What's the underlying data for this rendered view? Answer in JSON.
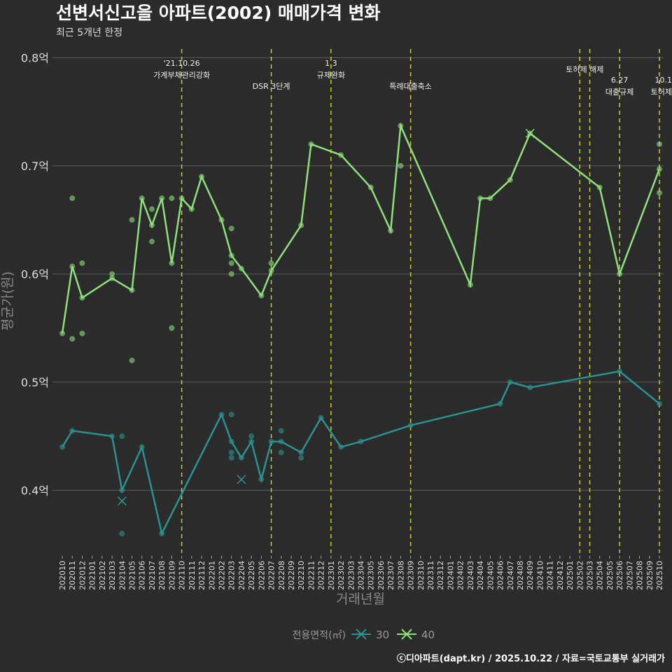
{
  "chart_data": {
    "type": "line",
    "title": "선변서신고을 아파트(2002) 매매가격 변화",
    "subtitle": "최근 5개년 한정",
    "caption": "ⓒ디아파트(dapt.kr) / 2025.10.22 / 자료=국토교통부 실거래가",
    "xlabel": "거래년월",
    "ylabel": "평균가(원)",
    "ylim": [
      0.342,
      0.808
    ],
    "yticks": [
      {
        "v": 0.4,
        "label": "0.4억"
      },
      {
        "v": 0.5,
        "label": "0.5억"
      },
      {
        "v": 0.6,
        "label": "0.6억"
      },
      {
        "v": 0.7,
        "label": "0.7억"
      },
      {
        "v": 0.8,
        "label": "0.8억"
      }
    ],
    "x_start": "202010",
    "x_months": 61,
    "legend": {
      "title": "전용면적(㎡)",
      "position": "bottom"
    },
    "series": [
      {
        "name": "30",
        "color": "#2a9391",
        "line": [
          [
            0,
            0.44
          ],
          [
            1,
            0.455
          ],
          [
            5,
            0.45
          ],
          [
            6,
            0.4
          ],
          [
            8,
            0.44
          ],
          [
            10,
            0.36
          ],
          [
            16,
            0.47
          ],
          [
            17,
            0.445
          ],
          [
            18,
            0.43
          ],
          [
            19,
            0.445
          ],
          [
            20,
            0.41
          ],
          [
            21,
            0.445
          ],
          [
            22,
            0.445
          ],
          [
            24,
            0.435
          ],
          [
            26,
            0.467
          ],
          [
            28,
            0.44
          ],
          [
            30,
            0.445
          ],
          [
            35,
            0.46
          ],
          [
            44,
            0.48
          ],
          [
            45,
            0.5
          ],
          [
            47,
            0.495
          ],
          [
            56,
            0.51
          ],
          [
            60,
            0.48
          ]
        ],
        "points": [
          [
            6,
            0.45
          ],
          [
            6,
            0.36
          ],
          [
            17,
            0.47
          ],
          [
            17,
            0.435
          ],
          [
            17,
            0.43
          ],
          [
            19,
            0.45
          ],
          [
            22,
            0.455
          ],
          [
            22,
            0.435
          ],
          [
            24,
            0.43
          ]
        ],
        "cancelled": [
          [
            6,
            0.39
          ],
          [
            18,
            0.41
          ]
        ]
      },
      {
        "name": "40",
        "color": "#8ee07a",
        "line": [
          [
            0,
            0.545
          ],
          [
            1,
            0.607
          ],
          [
            2,
            0.578
          ],
          [
            5,
            0.596
          ],
          [
            7,
            0.585
          ],
          [
            8,
            0.67
          ],
          [
            9,
            0.645
          ],
          [
            10,
            0.67
          ],
          [
            11,
            0.61
          ],
          [
            12,
            0.67
          ],
          [
            13,
            0.66
          ],
          [
            14,
            0.69
          ],
          [
            16,
            0.65
          ],
          [
            17,
            0.617
          ],
          [
            18,
            0.605
          ],
          [
            20,
            0.58
          ],
          [
            21,
            0.603
          ],
          [
            24,
            0.645
          ],
          [
            25,
            0.72
          ],
          [
            28,
            0.71
          ],
          [
            31,
            0.68
          ],
          [
            33,
            0.64
          ],
          [
            34,
            0.737
          ],
          [
            41,
            0.59
          ],
          [
            42,
            0.67
          ],
          [
            43,
            0.67
          ],
          [
            45,
            0.687
          ],
          [
            47,
            0.73
          ],
          [
            54,
            0.68
          ],
          [
            56,
            0.6
          ],
          [
            60,
            0.697
          ]
        ],
        "points": [
          [
            1,
            0.67
          ],
          [
            1,
            0.54
          ],
          [
            2,
            0.61
          ],
          [
            2,
            0.545
          ],
          [
            5,
            0.6
          ],
          [
            7,
            0.65
          ],
          [
            7,
            0.52
          ],
          [
            9,
            0.66
          ],
          [
            9,
            0.63
          ],
          [
            11,
            0.67
          ],
          [
            11,
            0.55
          ],
          [
            17,
            0.642
          ],
          [
            17,
            0.61
          ],
          [
            17,
            0.6
          ],
          [
            21,
            0.61
          ],
          [
            34,
            0.7
          ],
          [
            60,
            0.72
          ],
          [
            60,
            0.675
          ]
        ],
        "cancelled": [
          [
            47,
            0.73
          ]
        ]
      }
    ],
    "events": [
      {
        "m": 12,
        "lines": [
          "'21.10.26",
          "가계부채관리강화"
        ],
        "row": 0
      },
      {
        "m": 21,
        "lines": [
          "DSR 3단계"
        ],
        "row": 1
      },
      {
        "m": 27,
        "lines": [
          "1.3",
          "규제완화"
        ],
        "row": 0
      },
      {
        "m": 35,
        "lines": [
          "특례대출축소"
        ],
        "row": 1
      },
      {
        "m": 52,
        "lines": [
          "토허제 해제"
        ],
        "row": 0,
        "nolabel": false
      },
      {
        "m": 53,
        "lines": [],
        "row": 0
      },
      {
        "m": 56,
        "lines": [
          "6.27",
          "대출규제"
        ],
        "row": 1
      },
      {
        "m": 60,
        "lines": [
          "10.1",
          "토허제"
        ],
        "row": 1
      }
    ]
  }
}
